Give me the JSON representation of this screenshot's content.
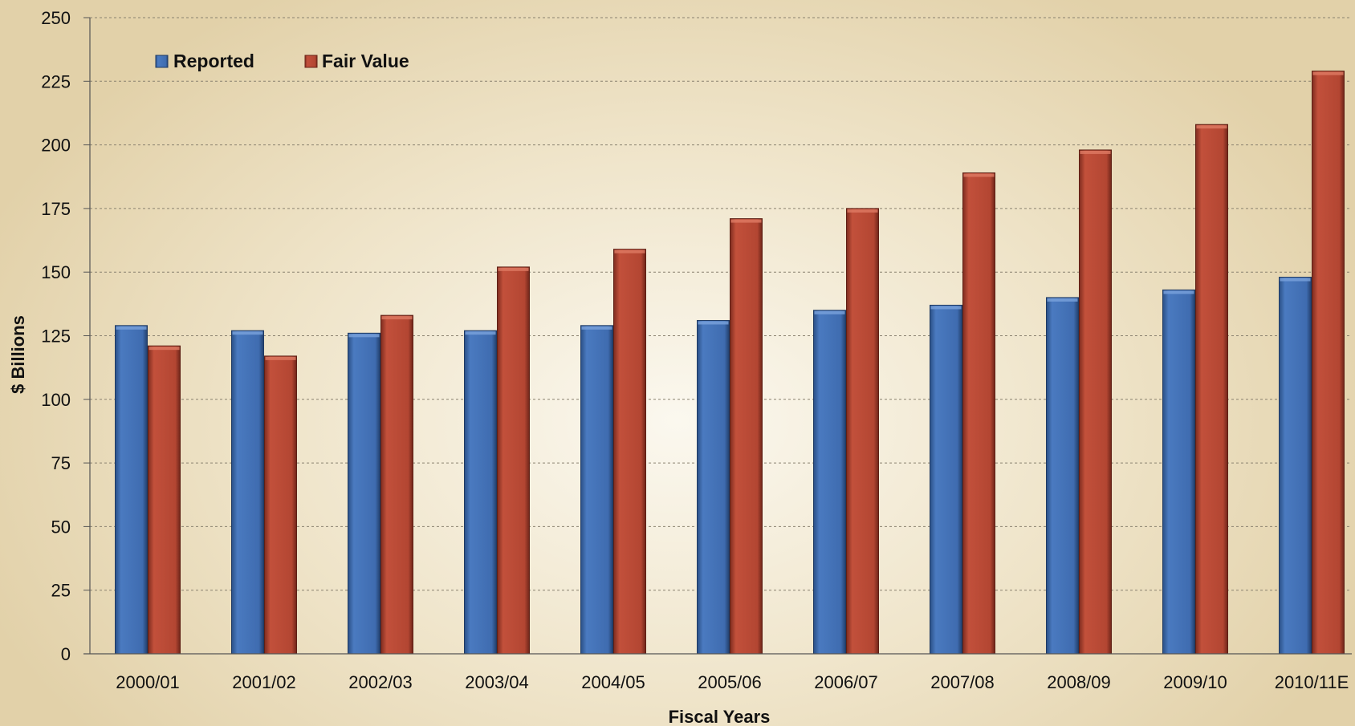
{
  "chart_data": {
    "type": "bar",
    "title": "",
    "xlabel": "Fiscal Years",
    "ylabel": "$ Billions",
    "categories": [
      "2000/01",
      "2001/02",
      "2002/03",
      "2003/04",
      "2004/05",
      "2005/06",
      "2006/07",
      "2007/08",
      "2008/09",
      "2009/10",
      "2010/11E"
    ],
    "series": [
      {
        "name": "Reported",
        "color": "#4473b8",
        "values": [
          129,
          127,
          126,
          127,
          129,
          131,
          135,
          137,
          140,
          143,
          148
        ]
      },
      {
        "name": "Fair Value",
        "color": "#b84a36",
        "values": [
          121,
          117,
          133,
          152,
          159,
          171,
          175,
          189,
          198,
          208,
          229
        ]
      }
    ],
    "ylim": [
      0,
      250
    ],
    "yticks": [
      0,
      25,
      50,
      75,
      100,
      125,
      150,
      175,
      200,
      225,
      250
    ],
    "grid": true,
    "legend": "top-left"
  }
}
